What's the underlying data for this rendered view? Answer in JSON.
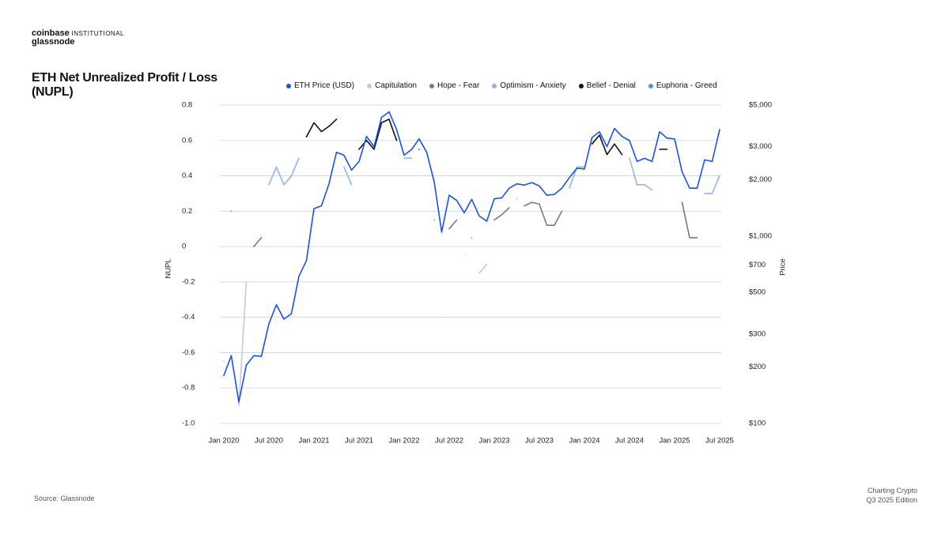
{
  "header": {
    "brand": "coinbase",
    "brand_sub": "INSTITUTIONAL",
    "partner": "glassnode"
  },
  "chart_data": {
    "type": "line",
    "title": "ETH Net Unrealized Profit / Loss (NUPL)",
    "y_label": "NUPL",
    "y2_label": "Price",
    "categories": [
      "Jan 2020",
      null,
      null,
      null,
      null,
      null,
      "Jul 2020",
      null,
      null,
      null,
      null,
      null,
      "Jan 2021",
      null,
      null,
      null,
      null,
      null,
      "Jul 2021",
      null,
      null,
      null,
      null,
      null,
      "Jan 2022",
      null,
      null,
      null,
      null,
      null,
      "Jul 2022",
      null,
      null,
      null,
      null,
      null,
      "Jan 2023",
      null,
      null,
      null,
      null,
      null,
      "Jul 2023",
      null,
      null,
      null,
      null,
      null,
      "Jan 2024",
      null,
      null,
      null,
      null,
      null,
      "Jul 2024",
      null,
      null,
      null,
      null,
      null,
      "Jan 2025",
      null,
      null,
      null,
      null,
      null,
      "Jul 2025"
    ],
    "ylim": [
      -1,
      0.8
    ],
    "yticks": [
      0.8,
      0.6,
      0.4,
      0.2,
      0,
      -0.2,
      -0.4,
      -0.6,
      -0.8,
      {
        "value": -1,
        "label": "-1.0"
      }
    ],
    "y2lim": [
      100,
      5000
    ],
    "y2_log": true,
    "y2ticks": [
      {
        "value": 5000,
        "label": "$5,000"
      },
      {
        "value": 3000,
        "label": "$3,000"
      },
      {
        "value": 2000,
        "label": "$2,000"
      },
      {
        "value": 1000,
        "label": "$1,000"
      },
      {
        "value": 700,
        "label": "$700"
      },
      {
        "value": 500,
        "label": "$500"
      },
      {
        "value": 300,
        "label": "$300"
      },
      {
        "value": 200,
        "label": "$200"
      },
      {
        "value": 100,
        "label": "$100"
      }
    ],
    "grid": true,
    "legend": "top",
    "series": [
      {
        "name": "ETH Price (USD)",
        "color": "#1652f0",
        "axis": "y2",
        "values": [
          180,
          230,
          130,
          205,
          230,
          228,
          340,
          430,
          360,
          385,
          610,
          740,
          1400,
          1450,
          1900,
          2800,
          2700,
          2250,
          2500,
          3400,
          3000,
          4300,
          4600,
          3700,
          2700,
          2900,
          3300,
          2800,
          1950,
          1050,
          1650,
          1550,
          1330,
          1570,
          1280,
          1200,
          1580,
          1600,
          1800,
          1900,
          1870,
          1930,
          1850,
          1650,
          1670,
          1800,
          2050,
          2300,
          2280,
          3350,
          3600,
          3000,
          3750,
          3400,
          3230,
          2500,
          2600,
          2500,
          3600,
          3330,
          3300,
          2200,
          1800,
          1800,
          2550,
          2500,
          3700
        ]
      },
      {
        "name": "Capitulation",
        "color": "#c9c9c9",
        "values": [
          -0.65,
          null,
          -0.9,
          -0.2,
          null,
          null,
          null,
          null,
          null,
          null,
          null,
          null,
          null,
          null,
          null,
          null,
          null,
          null,
          null,
          null,
          null,
          null,
          null,
          null,
          null,
          null,
          null,
          null,
          null,
          -0.4,
          null,
          null,
          -0.05,
          null,
          -0.15,
          -0.1,
          null,
          null,
          null,
          null,
          null,
          null,
          null,
          null,
          null,
          null,
          null,
          null,
          null,
          null,
          null,
          null,
          null,
          null,
          null,
          null,
          null,
          null,
          null,
          null,
          null,
          null,
          null,
          null,
          null,
          null,
          null
        ]
      },
      {
        "name": "Hope - Fear",
        "color": "#7a7a7a",
        "values": [
          null,
          0.2,
          null,
          null,
          0,
          0.05,
          null,
          null,
          null,
          null,
          null,
          null,
          null,
          null,
          null,
          null,
          null,
          null,
          null,
          null,
          null,
          null,
          null,
          null,
          null,
          null,
          null,
          null,
          0.15,
          null,
          0.1,
          0.15,
          null,
          0.05,
          null,
          null,
          0.15,
          0.18,
          0.22,
          null,
          0.23,
          0.25,
          0.24,
          0.12,
          0.12,
          0.2,
          null,
          null,
          null,
          null,
          null,
          null,
          null,
          null,
          null,
          null,
          null,
          null,
          null,
          null,
          null,
          0.25,
          0.05,
          0.05,
          null,
          null,
          null
        ]
      },
      {
        "name": "Optimism - Anxiety",
        "color": "#93b2f2",
        "values": [
          null,
          null,
          null,
          null,
          null,
          null,
          0.35,
          0.45,
          0.35,
          0.4,
          0.5,
          null,
          null,
          null,
          null,
          null,
          0.45,
          0.35,
          null,
          null,
          null,
          null,
          null,
          null,
          0.5,
          0.5,
          null,
          0.4,
          null,
          null,
          null,
          null,
          null,
          null,
          null,
          null,
          null,
          null,
          null,
          0.27,
          null,
          null,
          null,
          null,
          null,
          null,
          0.33,
          0.45,
          0.45,
          null,
          null,
          null,
          null,
          null,
          0.5,
          0.35,
          0.35,
          0.32,
          null,
          null,
          0.48,
          null,
          null,
          null,
          0.3,
          0.3,
          0.4
        ]
      },
      {
        "name": "Belief - Denial",
        "color": "#111111",
        "values": [
          null,
          null,
          null,
          null,
          null,
          null,
          null,
          null,
          null,
          null,
          null,
          0.62,
          0.7,
          0.65,
          0.68,
          0.72,
          null,
          null,
          0.55,
          0.6,
          0.55,
          0.7,
          0.72,
          0.6,
          null,
          null,
          0.55,
          null,
          null,
          null,
          null,
          null,
          null,
          null,
          null,
          null,
          null,
          null,
          null,
          null,
          null,
          null,
          null,
          null,
          null,
          null,
          null,
          null,
          null,
          0.58,
          0.63,
          0.52,
          0.58,
          0.52,
          null,
          null,
          null,
          null,
          0.55,
          0.55,
          null,
          null,
          null,
          null,
          null,
          null,
          null
        ]
      },
      {
        "name": "Euphoria - Greed",
        "color": "#5b8def",
        "values": [
          null,
          null,
          null,
          null,
          null,
          null,
          null,
          null,
          null,
          null,
          null,
          null,
          null,
          null,
          null,
          null,
          null,
          null,
          null,
          null,
          null,
          null,
          null,
          null,
          null,
          null,
          null,
          null,
          null,
          null,
          null,
          null,
          null,
          null,
          null,
          null,
          null,
          null,
          null,
          null,
          null,
          null,
          null,
          null,
          null,
          null,
          null,
          null,
          null,
          null,
          null,
          null,
          null,
          null,
          null,
          null,
          null,
          null,
          null,
          null,
          null,
          null,
          null,
          null,
          null,
          null,
          null
        ]
      }
    ]
  },
  "footer": {
    "source": "Source: Glassnode",
    "publication": "Charting Crypto",
    "edition": "Q3 2025 Edition"
  }
}
